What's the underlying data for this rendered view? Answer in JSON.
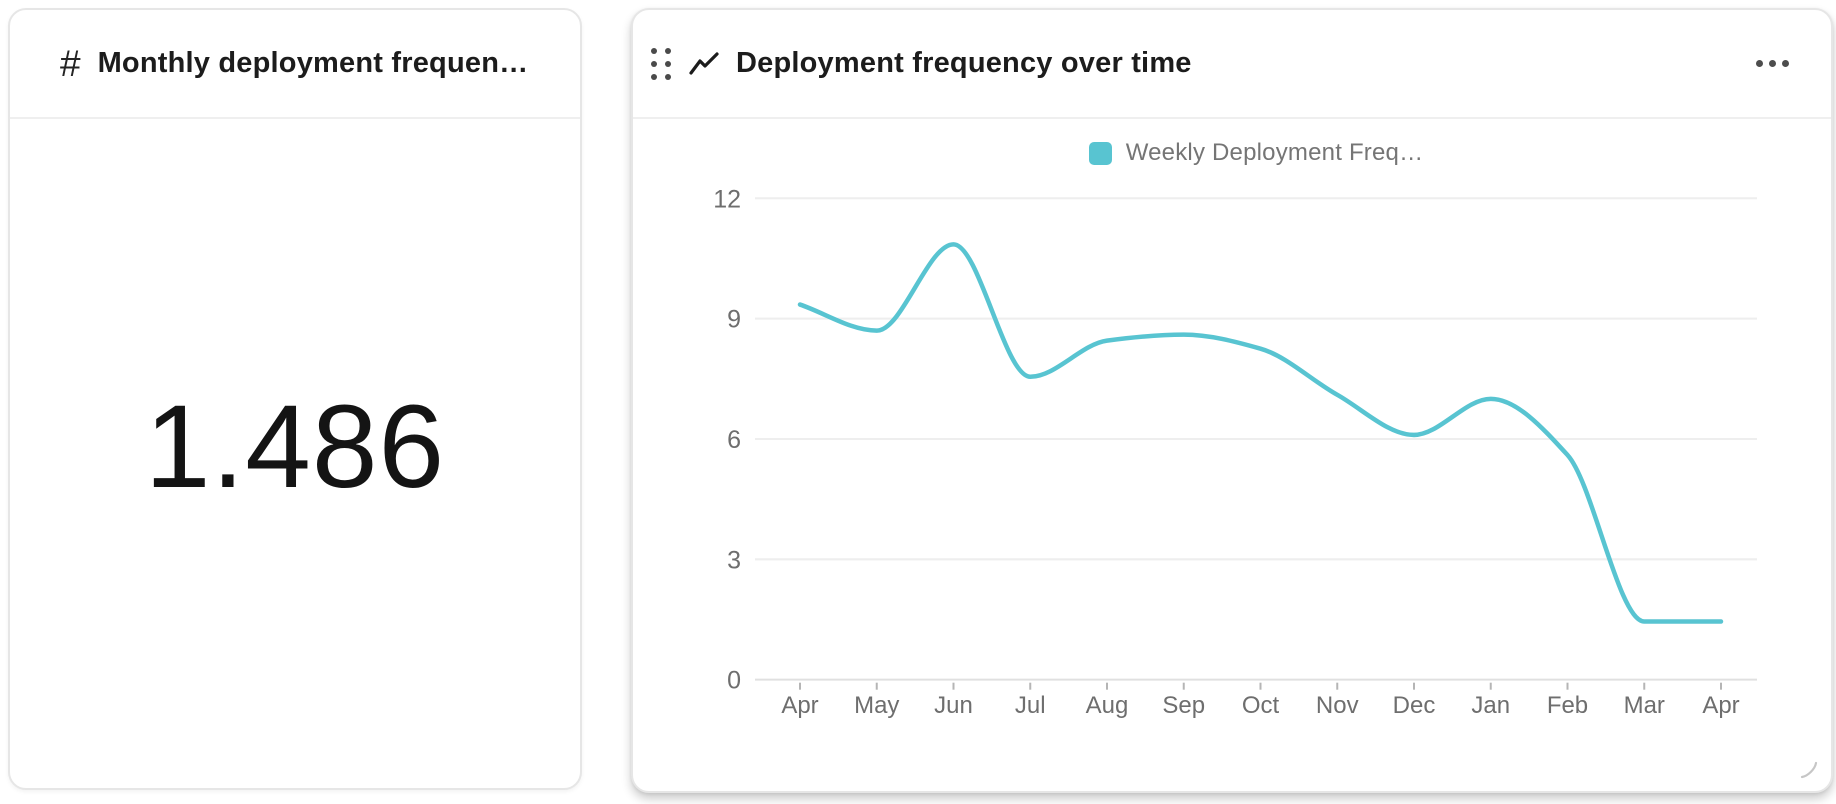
{
  "metric_card": {
    "icon": "hash",
    "title": "Monthly deployment frequen…",
    "value": "1.486"
  },
  "chart_card": {
    "title": "Deployment frequency over time",
    "menu": "more-options",
    "legend_label": "Weekly Deployment Freq…"
  },
  "colors": {
    "accent": "#58c4d1",
    "grid": "#eeeeee",
    "axis_line": "#e0e0e0",
    "tick": "#b5b5b5",
    "axis_text": "#6e6e6e",
    "legend_text": "#757575"
  },
  "chart_data": {
    "type": "line",
    "title": "Deployment frequency over time",
    "legend": [
      "Weekly Deployment Freq…"
    ],
    "legend_position": "top-center",
    "x": [
      "Apr",
      "May",
      "Jun",
      "Jul",
      "Aug",
      "Sep",
      "Oct",
      "Nov",
      "Dec",
      "Jan",
      "Feb",
      "Mar",
      "Apr"
    ],
    "series": [
      {
        "name": "Weekly Deployment Freq…",
        "color": "#58c4d1",
        "values": [
          9.35,
          8.7,
          10.85,
          7.55,
          8.45,
          8.6,
          8.25,
          7.1,
          6.1,
          7.0,
          5.6,
          1.45,
          1.45
        ]
      }
    ],
    "ylim": [
      0,
      12
    ],
    "yticks": [
      0,
      3,
      6,
      9,
      12
    ],
    "grid": true,
    "smooth": "monotone"
  }
}
